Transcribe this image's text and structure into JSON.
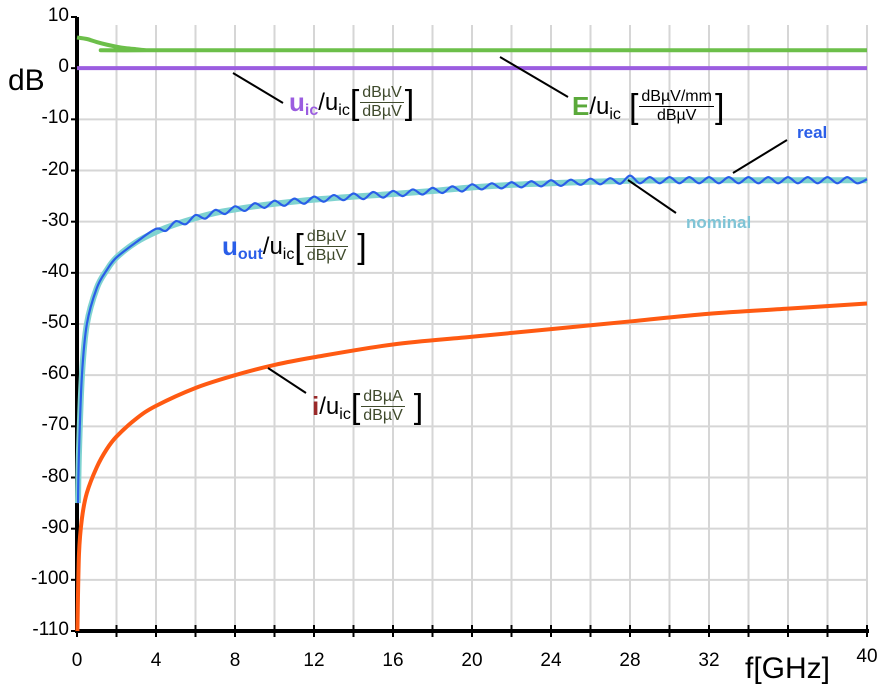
{
  "chart_data": {
    "type": "line",
    "ylabel": "dB",
    "xlabel": "f[GHz]",
    "xlim": [
      0,
      40
    ],
    "ylim": [
      -110,
      10
    ],
    "grid": true,
    "x_ticks": [
      "0",
      "4",
      "8",
      "12",
      "16",
      "20",
      "24",
      "28",
      "32",
      "40"
    ],
    "x_tick_values": [
      0,
      4,
      8,
      12,
      16,
      20,
      24,
      28,
      32,
      40
    ],
    "y_ticks": [
      "10",
      "0",
      "-10",
      "-20",
      "-30",
      "-40",
      "-50",
      "-60",
      "-70",
      "-80",
      "-90",
      "-100",
      "-110"
    ],
    "y_tick_values": [
      10,
      0,
      -10,
      -20,
      -30,
      -40,
      -50,
      -60,
      -70,
      -80,
      -90,
      -100,
      -110
    ],
    "series": [
      {
        "id": "e",
        "color": "#6cbf4a",
        "x": [
          0,
          0.5,
          1,
          1.5,
          2,
          2.5,
          3,
          3.5,
          4,
          40
        ],
        "y": [
          6,
          5.7,
          5.1,
          4.6,
          4.2,
          3.9,
          3.7,
          3.5,
          3.5,
          3.5
        ]
      },
      {
        "id": "uic",
        "color": "#9b5de0",
        "x": [
          0,
          40
        ],
        "y": [
          0,
          0
        ]
      },
      {
        "id": "nominal",
        "name": "nominal",
        "color": "#7fd3d0",
        "x": [
          0.05,
          0.1,
          0.25,
          0.5,
          1,
          1.5,
          2,
          3,
          4,
          5,
          6,
          7,
          8,
          9,
          10,
          12,
          14,
          16,
          18,
          20,
          22,
          24,
          26,
          28,
          30,
          32,
          34,
          36,
          38,
          40
        ],
        "y": [
          -85,
          -75,
          -60,
          -50,
          -43,
          -39.5,
          -37,
          -34,
          -32,
          -30.5,
          -29.3,
          -28.3,
          -27.6,
          -27,
          -26.5,
          -25.7,
          -25.1,
          -24.6,
          -24,
          -23.3,
          -22.8,
          -22.5,
          -22.2,
          -22,
          -21.9,
          -21.9,
          -21.9,
          -21.9,
          -21.9,
          -21.9
        ]
      },
      {
        "id": "real",
        "name": "real",
        "color": "#2a5ee8",
        "x": [
          0.05,
          0.1,
          0.25,
          0.5,
          1,
          1.5,
          2,
          3,
          4,
          4.5,
          5,
          5.5,
          6,
          6.5,
          7,
          7.5,
          8,
          8.5,
          9,
          9.5,
          10,
          10.5,
          11,
          11.5,
          12,
          12.5,
          13,
          13.5,
          14,
          14.5,
          15,
          15.5,
          16,
          16.5,
          17,
          17.5,
          18,
          18.5,
          19,
          19.5,
          20,
          20.5,
          21,
          21.5,
          22,
          22.5,
          23,
          23.5,
          24,
          24.5,
          25,
          25.5,
          26,
          26.5,
          27,
          27.5,
          28,
          28.5,
          29,
          29.5,
          30,
          30.5,
          31,
          31.5,
          32,
          32.5,
          33,
          33.5,
          34,
          34.5,
          35,
          35.5,
          36,
          36.5,
          37,
          37.5,
          38,
          38.5,
          39,
          39.5,
          40
        ],
        "y": [
          -85,
          -75,
          -60,
          -50,
          -43,
          -39.5,
          -37,
          -34,
          -31.4,
          -31.8,
          -29.9,
          -30.5,
          -28.7,
          -29.4,
          -27.7,
          -28.5,
          -27.0,
          -27.9,
          -26.4,
          -27.3,
          -25.9,
          -26.9,
          -25.5,
          -26.5,
          -25.1,
          -26.1,
          -24.8,
          -25.8,
          -24.5,
          -25.6,
          -24.2,
          -25.3,
          -24.0,
          -25.0,
          -23.7,
          -24.7,
          -23.4,
          -24.4,
          -23.1,
          -24.1,
          -22.7,
          -23.7,
          -22.5,
          -23.5,
          -22.3,
          -23.3,
          -22.1,
          -23.1,
          -21.9,
          -23.0,
          -21.8,
          -22.8,
          -21.6,
          -22.7,
          -21.5,
          -22.6,
          -21.0,
          -22.5,
          -21.3,
          -22.5,
          -21.3,
          -22.5,
          -21.3,
          -22.5,
          -21.3,
          -22.5,
          -21.3,
          -22.5,
          -21.3,
          -22.5,
          -21.3,
          -22.5,
          -21.3,
          -22.5,
          -21.3,
          -22.5,
          -21.3,
          -22.5,
          -21.3,
          -22.5,
          -21.7
        ]
      },
      {
        "id": "i",
        "color": "#ff5a12",
        "x": [
          0.02,
          0.1,
          0.25,
          0.5,
          1,
          1.5,
          2,
          3,
          4,
          6,
          8,
          10,
          12,
          16,
          20,
          24,
          28,
          32,
          36,
          40
        ],
        "y": [
          -110,
          -95,
          -88,
          -83,
          -78,
          -74.5,
          -72,
          -68.5,
          -66,
          -62.5,
          -60,
          -58,
          -56.5,
          -54,
          -52.5,
          -51,
          -49.5,
          -48,
          -47,
          -46
        ]
      }
    ],
    "annotations": {
      "uic": {
        "main": "u",
        "main_sub": "ic",
        "den": "u",
        "den_sub": "ic",
        "frac_num": "dBµV",
        "frac_den": "dBµV"
      },
      "e": {
        "main": "E",
        "den": "u",
        "den_sub": "ic",
        "frac_num": "dBµV/mm",
        "frac_den": "dBµV"
      },
      "uout": {
        "main": "u",
        "main_sub": "out",
        "den": "u",
        "den_sub": "ic",
        "frac_num": "dBµV",
        "frac_den": "dBµV"
      },
      "i": {
        "main": "i",
        "den": "u",
        "den_sub": "ic",
        "frac_num": "dBµA",
        "frac_den": "dBµV"
      },
      "real": "real",
      "nominal": "nominal"
    },
    "label_colors": {
      "uic": "#9b5de0",
      "e": "#5aa93a",
      "uout": "#2a5ee8",
      "i": "#9a2a2a",
      "real": "#2a5ee8",
      "nominal": "#7fc4d6"
    }
  }
}
